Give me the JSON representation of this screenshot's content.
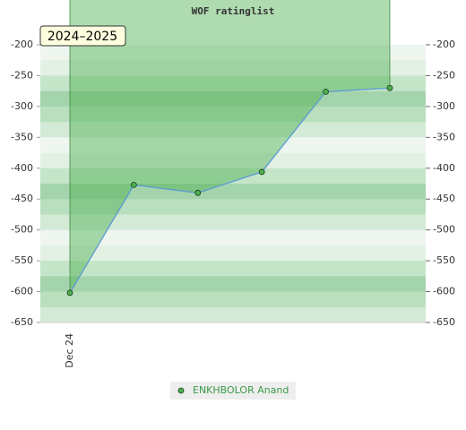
{
  "chart_data": {
    "type": "line",
    "title": "WOF ratinglist",
    "annotation": "2024–2025",
    "categories": [
      "Dec 24",
      null,
      null,
      null,
      null,
      null
    ],
    "series": [
      {
        "name": "ENKHBOLOR Anand",
        "color": "#5b9bd5",
        "values": [
          -602,
          -427,
          -440,
          -406,
          -276,
          -270
        ]
      }
    ],
    "area_color": "#4caf50",
    "ylim": [
      -650,
      -200
    ],
    "yticks": [
      -650,
      -600,
      -550,
      -500,
      -450,
      -400,
      -350,
      -300,
      -250,
      -200
    ]
  }
}
